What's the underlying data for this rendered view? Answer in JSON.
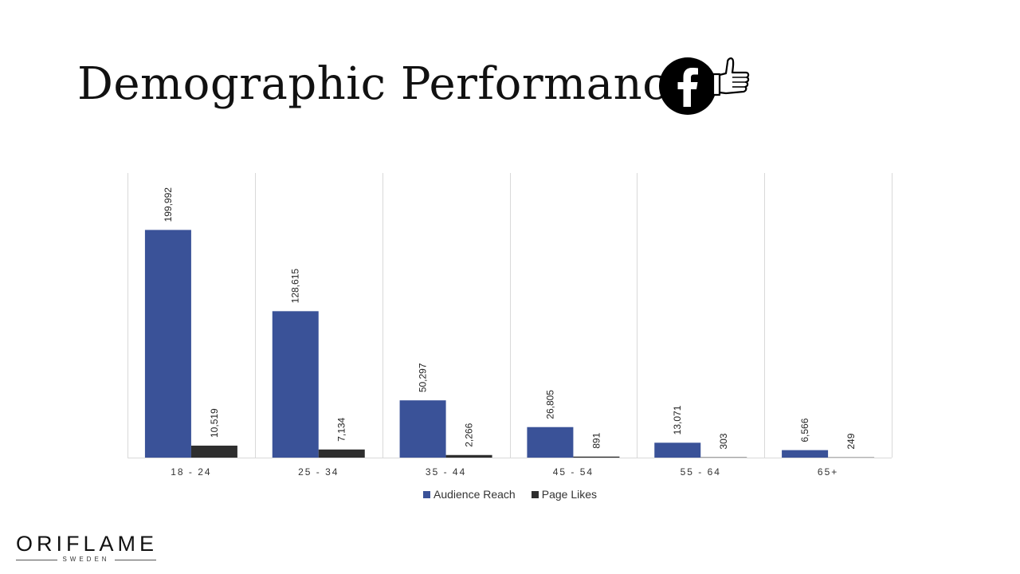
{
  "slide": {
    "title": "Demographic Performance"
  },
  "icons": {
    "facebook": "facebook-logo-icon",
    "thumb": "thumbs-up-icon"
  },
  "brand": {
    "name": "ORIFLAME",
    "sub": "SWEDEN"
  },
  "chart_data": {
    "type": "bar",
    "categories": [
      "18 - 24",
      "25 - 34",
      "35 - 44",
      "45 - 54",
      "55 - 64",
      "65+"
    ],
    "series": [
      {
        "name": "Audience Reach",
        "color": "#3a5298",
        "values": [
          199992,
          128615,
          50297,
          26805,
          13071,
          6566
        ]
      },
      {
        "name": "Page Likes",
        "color": "#2e2e2e",
        "values": [
          10519,
          7134,
          2266,
          891,
          303,
          249
        ]
      }
    ],
    "data_labels": [
      [
        "199,992",
        "128,615",
        "50,297",
        "26,805",
        "13,071",
        "6,566"
      ],
      [
        "10,519",
        "7,134",
        "2,266",
        "891",
        "303",
        "249"
      ]
    ],
    "ylim": [
      0,
      250000
    ],
    "grid": "vertical separators",
    "legend": "bottom"
  }
}
